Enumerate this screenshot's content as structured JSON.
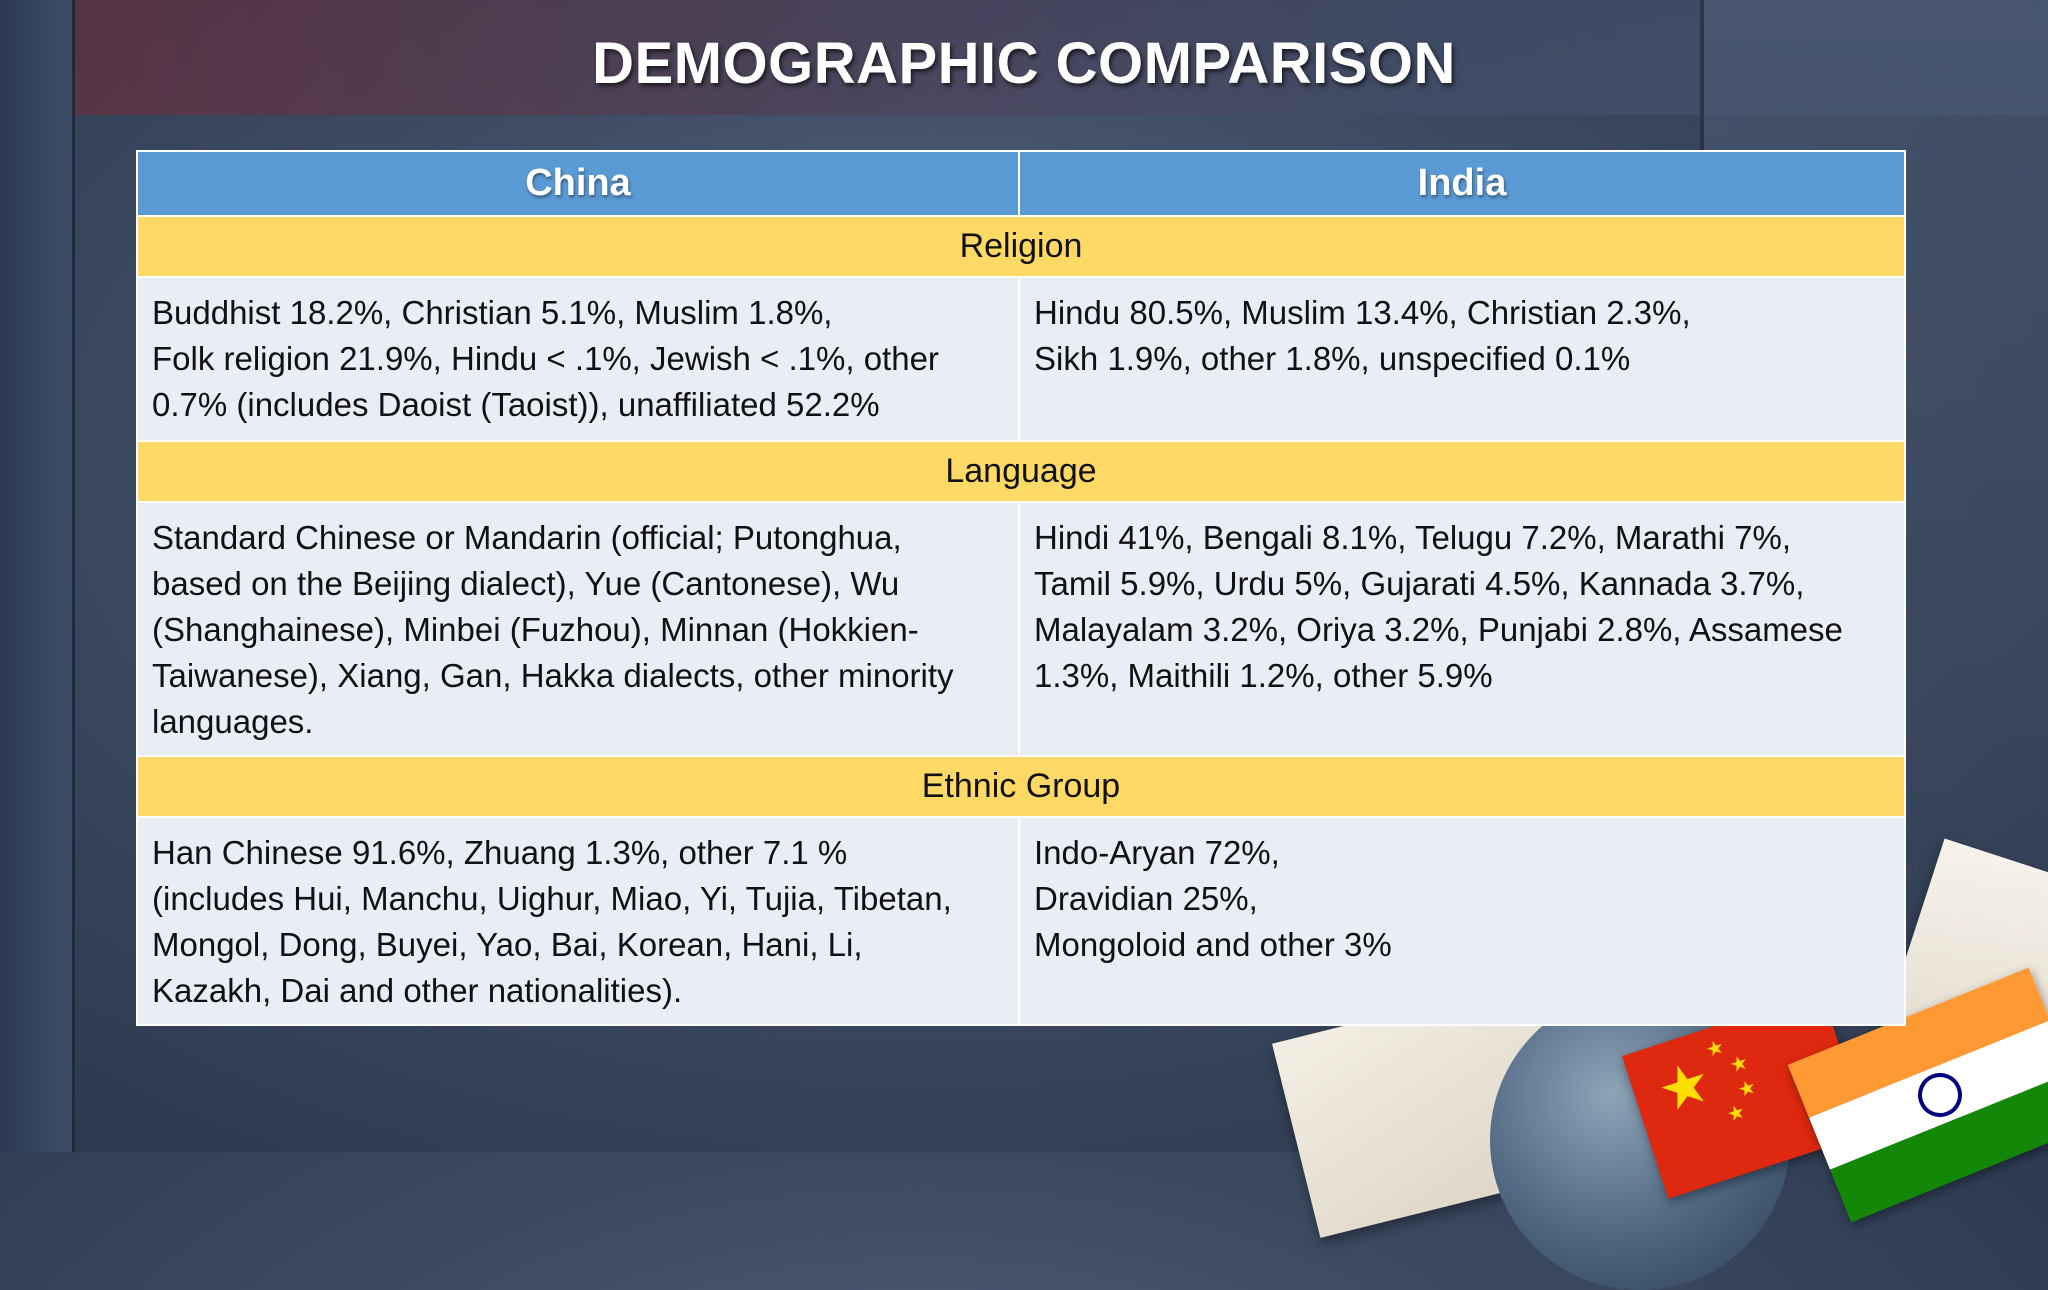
{
  "title": "DEMOGRAPHIC COMPARISON",
  "table": {
    "headers": [
      "China",
      "India"
    ],
    "sections": [
      {
        "label": "Religion",
        "china": "Buddhist 18.2%, Christian 5.1%, Muslim 1.8%,\nFolk religion 21.9%, Hindu < .1%, Jewish < .1%, other\n0.7% (includes Daoist (Taoist)), unaffiliated 52.2%",
        "india": "Hindu 80.5%, Muslim 13.4%, Christian 2.3%,\nSikh 1.9%, other 1.8%, unspecified 0.1%"
      },
      {
        "label": "Language",
        "china": "Standard Chinese or Mandarin (official; Putonghua,\nbased on the Beijing dialect), Yue (Cantonese), Wu\n(Shanghainese), Minbei (Fuzhou), Minnan (Hokkien-\nTaiwanese), Xiang, Gan, Hakka dialects, other minority\nlanguages.",
        "india": "Hindi 41%, Bengali 8.1%, Telugu 7.2%, Marathi 7%,\nTamil 5.9%, Urdu 5%, Gujarati 4.5%, Kannada 3.7%,\nMalayalam 3.2%, Oriya 3.2%, Punjabi 2.8%, Assamese\n1.3%, Maithili 1.2%, other 5.9%"
      },
      {
        "label": "Ethnic Group",
        "china": "Han Chinese 91.6%, Zhuang 1.3%, other 7.1 %\n(includes Hui, Manchu, Uighur, Miao, Yi, Tujia, Tibetan,\nMongol, Dong, Buyei, Yao, Bai, Korean, Hani, Li,\nKazakh, Dai and other nationalities).",
        "india": "Indo-Aryan 72%,\nDravidian 25%,\nMongoloid and other 3%"
      }
    ]
  },
  "colors": {
    "header_bg": "#5b9bd5",
    "section_bg": "#ffd966",
    "cell_bg": "#e9edf5"
  },
  "decor": {
    "icons": [
      "china-flag-icon",
      "india-flag-icon",
      "globe-icon",
      "papers-icon"
    ]
  }
}
